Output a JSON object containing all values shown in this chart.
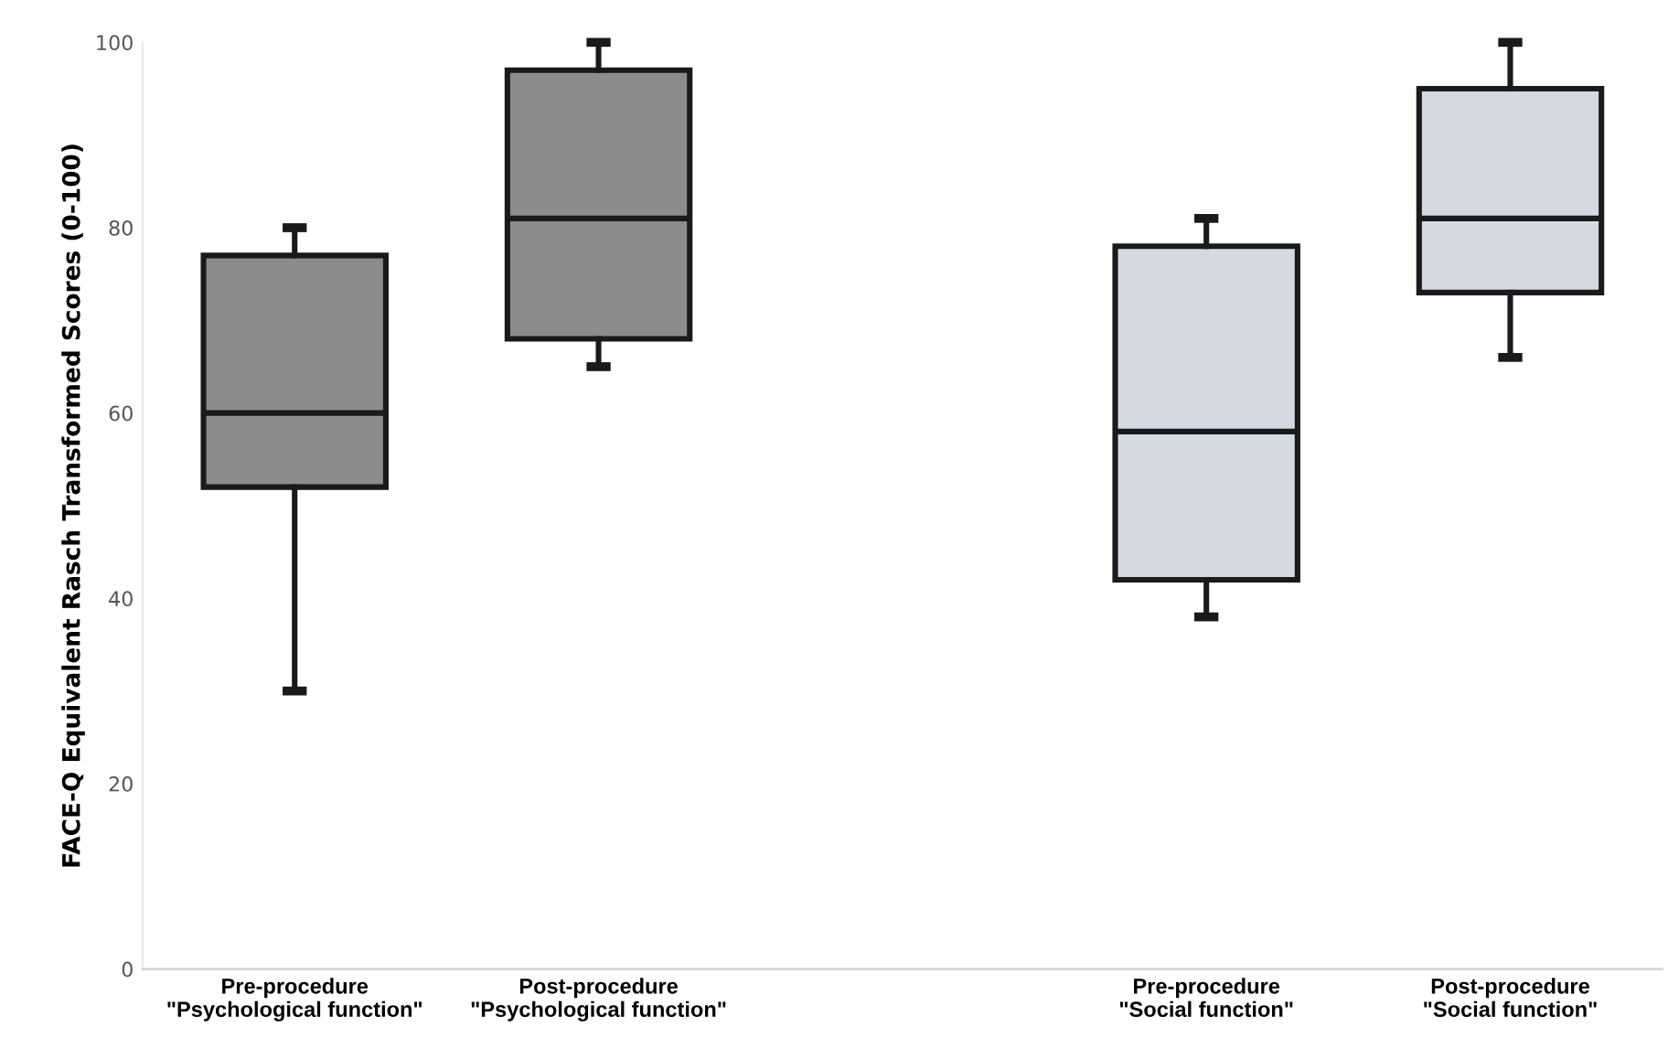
{
  "chart_data": {
    "type": "box",
    "ylabel": "FACE-Q Equivalent Rasch Transformed Scores (0-100)",
    "categories": [
      "Pre-procedure\n\"Psychological function\"",
      "Post-procedure\n\"Psychological function\"",
      null,
      "Pre-procedure\n\"Social function\"",
      "Post-procedure\n\"Social function\""
    ],
    "boxes": [
      {
        "low": 30,
        "q1": 52,
        "median": 60,
        "q3": 77,
        "high": 80
      },
      {
        "low": 65,
        "q1": 68,
        "median": 81,
        "q3": 97,
        "high": 100
      },
      null,
      {
        "low": 38,
        "q1": 42,
        "median": 58,
        "q3": 78,
        "high": 81
      },
      {
        "low": 66,
        "q1": 73,
        "median": 81,
        "q3": 95,
        "high": 100
      }
    ],
    "colors": [
      "#8c8c8c",
      "#8c8c8c",
      null,
      "#d5d9e1",
      "#d5d9e1"
    ],
    "ylim": [
      0,
      100
    ],
    "yticks": [
      0,
      20,
      40,
      60,
      80,
      100
    ],
    "grid": false
  }
}
